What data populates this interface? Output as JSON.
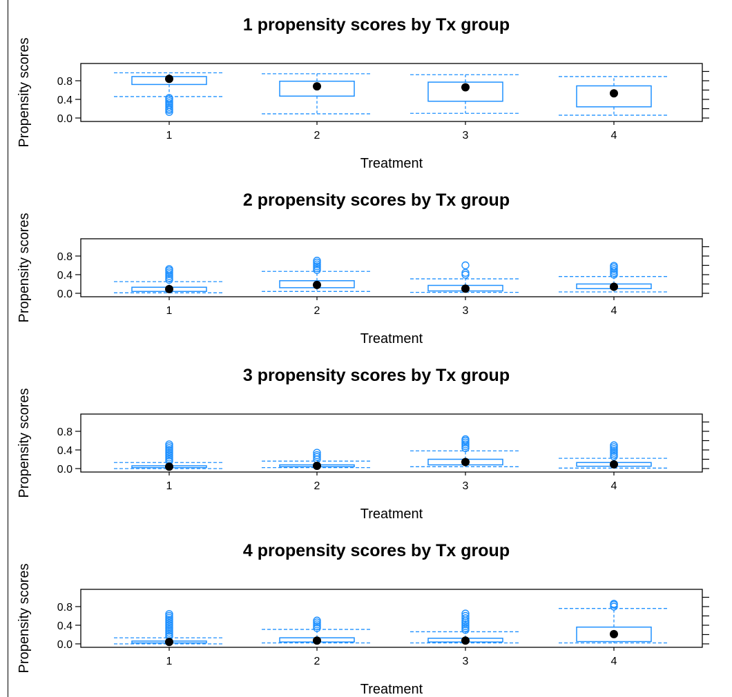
{
  "chart_data": [
    {
      "type": "box",
      "title": "1  propensity scores by Tx group",
      "xlabel": "Treatment",
      "ylabel": "Propensity scores",
      "categories": [
        "1",
        "2",
        "3",
        "4"
      ],
      "y_ticks": [
        "0.0",
        "0.4",
        "0.8"
      ],
      "ylim": [
        0,
        1.0
      ],
      "boxes": [
        {
          "whisker_low": 0.46,
          "q1": 0.72,
          "median": 0.84,
          "q3": 0.89,
          "whisker_high": 0.97,
          "outliers": [
            0.13,
            0.17,
            0.2,
            0.24,
            0.28,
            0.32,
            0.36,
            0.4,
            0.43
          ]
        },
        {
          "whisker_low": 0.09,
          "q1": 0.47,
          "median": 0.68,
          "q3": 0.79,
          "whisker_high": 0.95,
          "outliers": []
        },
        {
          "whisker_low": 0.1,
          "q1": 0.36,
          "median": 0.66,
          "q3": 0.77,
          "whisker_high": 0.93,
          "outliers": []
        },
        {
          "whisker_low": 0.06,
          "q1": 0.24,
          "median": 0.53,
          "q3": 0.69,
          "whisker_high": 0.89,
          "outliers": []
        }
      ]
    },
    {
      "type": "box",
      "title": "2  propensity scores by Tx group",
      "xlabel": "Treatment",
      "ylabel": "Propensity scores",
      "categories": [
        "1",
        "2",
        "3",
        "4"
      ],
      "y_ticks": [
        "0.0",
        "0.4",
        "0.8"
      ],
      "ylim": [
        0,
        1.0
      ],
      "boxes": [
        {
          "whisker_low": 0.01,
          "q1": 0.04,
          "median": 0.09,
          "q3": 0.13,
          "whisker_high": 0.25,
          "outliers": [
            0.29,
            0.33,
            0.37,
            0.41,
            0.45,
            0.49,
            0.52
          ]
        },
        {
          "whisker_low": 0.04,
          "q1": 0.12,
          "median": 0.18,
          "q3": 0.27,
          "whisker_high": 0.47,
          "outliers": [
            0.5,
            0.54,
            0.58,
            0.62,
            0.66,
            0.7
          ]
        },
        {
          "whisker_low": 0.02,
          "q1": 0.05,
          "median": 0.1,
          "q3": 0.17,
          "whisker_high": 0.31,
          "outliers": [
            0.4,
            0.44,
            0.6
          ]
        },
        {
          "whisker_low": 0.03,
          "q1": 0.1,
          "median": 0.14,
          "q3": 0.2,
          "whisker_high": 0.36,
          "outliers": [
            0.4,
            0.44,
            0.48,
            0.52,
            0.56,
            0.59
          ]
        }
      ]
    },
    {
      "type": "box",
      "title": "3  propensity scores by Tx group",
      "xlabel": "Treatment",
      "ylabel": "Propensity scores",
      "categories": [
        "1",
        "2",
        "3",
        "4"
      ],
      "y_ticks": [
        "0.0",
        "0.4",
        "0.8"
      ],
      "ylim": [
        0,
        1.0
      ],
      "boxes": [
        {
          "whisker_low": 0.0,
          "q1": 0.02,
          "median": 0.04,
          "q3": 0.06,
          "whisker_high": 0.13,
          "outliers": [
            0.16,
            0.2,
            0.24,
            0.28,
            0.32,
            0.36,
            0.4,
            0.44,
            0.48,
            0.52
          ]
        },
        {
          "whisker_low": 0.02,
          "q1": 0.04,
          "median": 0.06,
          "q3": 0.08,
          "whisker_high": 0.16,
          "outliers": [
            0.2,
            0.25,
            0.29,
            0.34
          ]
        },
        {
          "whisker_low": 0.04,
          "q1": 0.08,
          "median": 0.14,
          "q3": 0.2,
          "whisker_high": 0.38,
          "outliers": [
            0.44,
            0.48,
            0.52,
            0.56,
            0.6,
            0.63
          ]
        },
        {
          "whisker_low": 0.01,
          "q1": 0.05,
          "median": 0.09,
          "q3": 0.13,
          "whisker_high": 0.22,
          "outliers": [
            0.26,
            0.3,
            0.34,
            0.38,
            0.42,
            0.46,
            0.5
          ]
        }
      ]
    },
    {
      "type": "box",
      "title": "4  propensity scores by Tx group",
      "xlabel": "Treatment",
      "ylabel": "Propensity scores",
      "categories": [
        "1",
        "2",
        "3",
        "4"
      ],
      "y_ticks": [
        "0.0",
        "0.4",
        "0.8"
      ],
      "ylim": [
        0,
        1.0
      ],
      "boxes": [
        {
          "whisker_low": 0.0,
          "q1": 0.02,
          "median": 0.04,
          "q3": 0.06,
          "whisker_high": 0.13,
          "outliers": [
            0.16,
            0.2,
            0.24,
            0.28,
            0.32,
            0.36,
            0.4,
            0.44,
            0.48,
            0.52,
            0.56,
            0.6,
            0.64
          ]
        },
        {
          "whisker_low": 0.02,
          "q1": 0.04,
          "median": 0.07,
          "q3": 0.13,
          "whisker_high": 0.31,
          "outliers": [
            0.34,
            0.38,
            0.42,
            0.46,
            0.5
          ]
        },
        {
          "whisker_low": 0.02,
          "q1": 0.04,
          "median": 0.07,
          "q3": 0.12,
          "whisker_high": 0.26,
          "outliers": [
            0.3,
            0.34,
            0.38,
            0.42,
            0.46,
            0.5,
            0.55,
            0.6,
            0.65
          ]
        },
        {
          "whisker_low": 0.02,
          "q1": 0.05,
          "median": 0.21,
          "q3": 0.36,
          "whisker_high": 0.76,
          "outliers": [
            0.8,
            0.84,
            0.86
          ]
        }
      ]
    }
  ]
}
